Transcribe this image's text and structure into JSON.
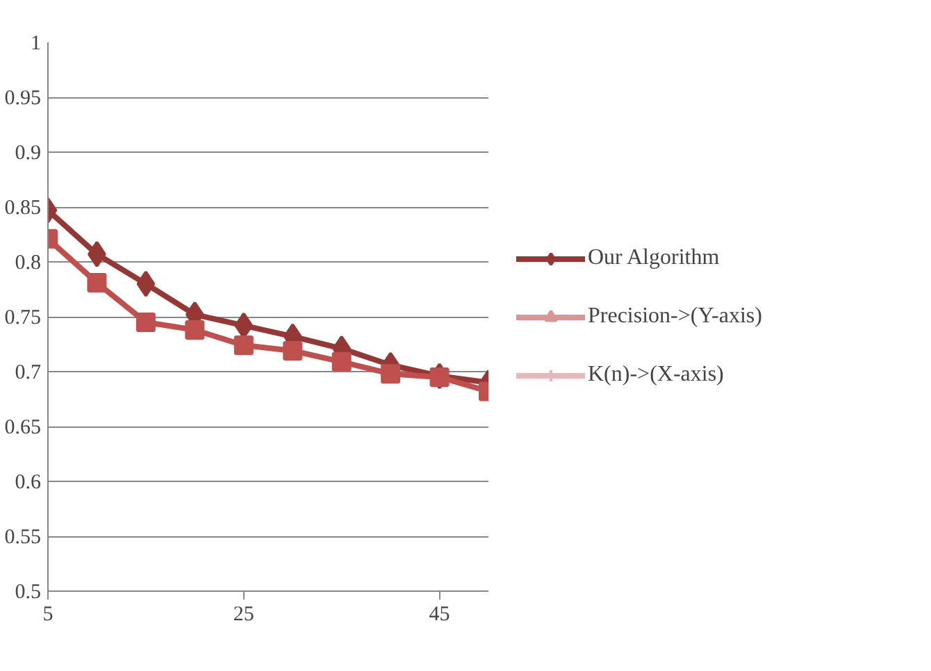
{
  "chart_data": {
    "type": "line",
    "x": [
      5,
      10,
      15,
      20,
      25,
      30,
      35,
      40,
      45,
      50
    ],
    "xlim": [
      5,
      50
    ],
    "xticks": [
      5,
      25,
      45
    ],
    "ylim": [
      0.5,
      1
    ],
    "yticks": [
      0.5,
      0.55,
      0.6,
      0.65,
      0.7,
      0.75,
      0.8,
      0.85,
      0.9,
      0.95,
      1
    ],
    "grid": "y",
    "legend": "right",
    "series": [
      {
        "name": "Our Algorithm",
        "color": "#953735",
        "marker": "diamond",
        "values": [
          0.847,
          0.807,
          0.78,
          0.752,
          0.742,
          0.732,
          0.721,
          0.706,
          0.696,
          0.69
        ]
      },
      {
        "color": "#c0504d",
        "marker": "square",
        "values": [
          0.821,
          0.781,
          0.745,
          0.738,
          0.724,
          0.719,
          0.709,
          0.698,
          0.695,
          0.682
        ]
      },
      {
        "name": "Precision->(Y-axis)",
        "color": "#d99694",
        "marker": "triangle",
        "values": [
          null,
          null,
          null,
          null,
          null,
          null,
          null,
          null,
          null,
          null
        ]
      },
      {
        "name": "K(n)->(X-axis)",
        "color": "#e6b9b8",
        "marker": "cross",
        "values": [
          null,
          null,
          null,
          null,
          null,
          null,
          null,
          null,
          null,
          null
        ]
      }
    ]
  }
}
